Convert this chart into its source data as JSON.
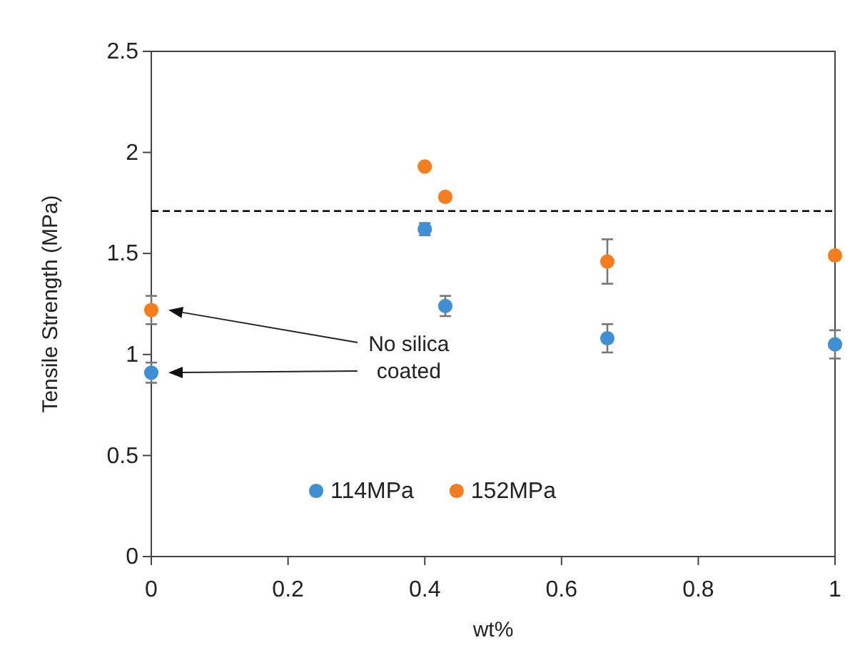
{
  "chart_data": {
    "type": "scatter",
    "xlabel": "wt%",
    "ylabel": "Tensile Strength (MPa)",
    "xlim": [
      0,
      1
    ],
    "xticks": [
      0,
      0.2,
      0.4,
      0.6,
      0.8,
      1
    ],
    "ylim": [
      0,
      2.5
    ],
    "yticks": [
      0,
      0.5,
      1,
      1.5,
      2,
      2.5
    ],
    "x": [
      0,
      0.4,
      0.43,
      0.667,
      1
    ],
    "marker": "circle",
    "grid": false,
    "legend": "bottom",
    "series": [
      {
        "name": "114MPa",
        "color": "#3f8fd2",
        "values": [
          0.91,
          1.62,
          1.24,
          1.08,
          1.05
        ],
        "errors": [
          0.05,
          0.03,
          0.05,
          0.07,
          0.07
        ]
      },
      {
        "name": "152MPa",
        "color": "#f47e1f",
        "values": [
          1.22,
          1.93,
          1.78,
          1.46,
          1.49
        ],
        "errors": [
          0.07,
          null,
          null,
          0.11,
          null
        ]
      }
    ],
    "ref_lines": [
      {
        "axis": "y",
        "value": 1.71,
        "color": "#000000",
        "line_style": "dashed"
      }
    ],
    "annotations": [
      "No silica coated"
    ]
  }
}
